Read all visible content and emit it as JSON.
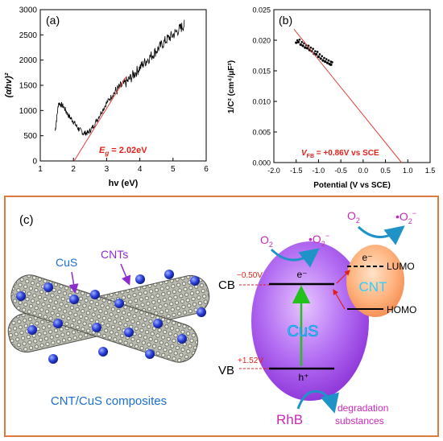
{
  "colors": {
    "axis": "#000000",
    "fit_line": "#e0403a",
    "annotation": "#e0221b",
    "panel_border": "#e07a3c",
    "purple": "#8e2bd0",
    "blue_label": "#1a6fd0",
    "magenta": "#c829b8",
    "green": "#22c21a",
    "dashed_red": "#e02020"
  },
  "chart_data": [
    {
      "type": "line",
      "panel_label": "(a)",
      "xlabel": "hv (eV)",
      "ylabel": "(αhv)²",
      "xlim": [
        1,
        6
      ],
      "ylim": [
        0,
        3000
      ],
      "xticks": [
        "1",
        "2",
        "3",
        "4",
        "5",
        "6"
      ],
      "yticks": [
        "0",
        "500",
        "1000",
        "1500",
        "2000",
        "2500",
        "3000"
      ],
      "grid": false,
      "series": [
        {
          "style": "noisy-black",
          "x": [
            1.45,
            1.55,
            1.7,
            1.85,
            2.0,
            2.15,
            2.3,
            2.45,
            2.6,
            2.8,
            3.0,
            3.2,
            3.4,
            3.6,
            3.8,
            4.0,
            4.2,
            4.4,
            4.6,
            4.8,
            5.0,
            5.2,
            5.35
          ],
          "y": [
            600,
            1150,
            1080,
            900,
            780,
            640,
            550,
            560,
            690,
            920,
            1150,
            1330,
            1460,
            1560,
            1700,
            1850,
            1990,
            2120,
            2260,
            2400,
            2500,
            2620,
            2700
          ]
        },
        {
          "style": "fit-line",
          "x": [
            2.02,
            3.6
          ],
          "y": [
            0,
            1680
          ]
        }
      ],
      "annotation": {
        "prefix": "E",
        "subscript": "g",
        "suffix": " = 2.02eV"
      }
    },
    {
      "type": "scatter",
      "panel_label": "(b)",
      "xlabel": "Potential (V vs SCE)",
      "ylabel": "1/C² (cm⁴/μF²)",
      "xlim": [
        -2.0,
        1.5
      ],
      "ylim": [
        0.0,
        0.025
      ],
      "xticks": [
        "-2.0",
        "-1.5",
        "-1.0",
        "-0.5",
        "0.0",
        "0.5",
        "1.0",
        "1.5"
      ],
      "yticks": [
        "0.000",
        "0.005",
        "0.010",
        "0.015",
        "0.020",
        "0.025"
      ],
      "grid": false,
      "series": [
        {
          "style": "points",
          "x": [
            -1.5,
            -1.45,
            -1.4,
            -1.35,
            -1.3,
            -1.25,
            -1.2,
            -1.15,
            -1.1,
            -1.05,
            -1.0,
            -0.95,
            -0.9,
            -0.85,
            -0.8,
            -0.75,
            -0.72
          ],
          "y": [
            0.0196,
            0.0197,
            0.0193,
            0.0191,
            0.0188,
            0.0187,
            0.0184,
            0.0182,
            0.0178,
            0.0177,
            0.0173,
            0.017,
            0.0167,
            0.0165,
            0.0163,
            0.0161,
            0.016
          ]
        },
        {
          "style": "fit-line",
          "x": [
            -1.55,
            0.86
          ],
          "y": [
            0.0218,
            0.0
          ]
        }
      ],
      "annotation": {
        "prefix": "V",
        "subscript": "FB",
        "suffix": " = +0.86V vs SCE"
      }
    }
  ],
  "panel_c": {
    "label": "(c)",
    "cus_label": "CuS",
    "cnts_label": "CNTs",
    "composite_label": "CNT/CuS composites",
    "cb_label": "CB",
    "vb_label": "VB",
    "cb_potential": "−0.50V",
    "vb_potential": "+1.52V",
    "electron": "e⁻",
    "hole": "h⁺",
    "cus_center": "CuS",
    "cnt_center": "CNT",
    "lumo": "LUMO",
    "homo": "HOMO",
    "o2": "O",
    "o2_sub": "2",
    "superoxide": "•O",
    "superoxide_sub": "2",
    "superoxide_sup": "−",
    "rhb": "RhB",
    "degradation_1": "degradation",
    "degradation_2": "substances"
  }
}
